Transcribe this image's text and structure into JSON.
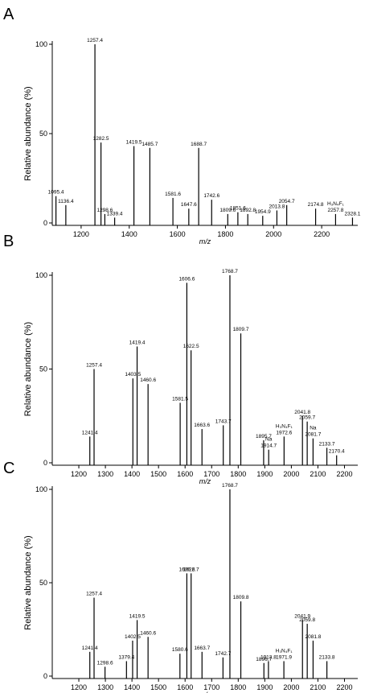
{
  "chart_data": [
    {
      "type": "spectrum",
      "panel_label": "A",
      "ylabel": "Relative abundance (%)",
      "xlabel": "m/z",
      "color": "#000000",
      "x": [
        1095.4,
        1136.4,
        1257.4,
        1282.5,
        1298.6,
        1339.4,
        1419.5,
        1485.7,
        1581.6,
        1647.6,
        1688.7,
        1742.6,
        1809.6,
        1851.6,
        1892.8,
        1954.9,
        2013.8,
        2054.7,
        2174.8,
        2257.8,
        2328.1
      ],
      "values": [
        15,
        10,
        100,
        45,
        5,
        3,
        43,
        42,
        14,
        8,
        42,
        13,
        5,
        6,
        5,
        4,
        7,
        10,
        8,
        5,
        3
      ],
      "xlim": [
        1080,
        2350
      ],
      "xticks": [
        1200,
        1400,
        1600,
        1800,
        2000,
        2200
      ],
      "ylim": [
        0,
        100
      ],
      "yticks": [
        0,
        50,
        100
      ],
      "annotations": [
        "H₃N₄F₁"
      ]
    },
    {
      "type": "spectrum",
      "panel_label": "B",
      "ylabel": "Relative abundance (%)",
      "xlabel": "m/z",
      "color": "#000000",
      "x": [
        1241.4,
        1257.4,
        1403.5,
        1419.4,
        1460.6,
        1581.5,
        1606.6,
        1622.5,
        1663.6,
        1743.7,
        1768.7,
        1809.7,
        1895.7,
        1914.7,
        1972.6,
        2041.8,
        2059.7,
        2081.7,
        2133.7,
        2170.4
      ],
      "values": [
        14,
        50,
        45,
        62,
        42,
        32,
        96,
        60,
        18,
        20,
        100,
        69,
        12,
        7,
        14,
        25,
        22,
        13,
        8,
        4
      ],
      "xlim": [
        1100,
        2250
      ],
      "xticks": [
        1200,
        1300,
        1400,
        1500,
        1600,
        1700,
        1800,
        1900,
        2000,
        2100,
        2200
      ],
      "ylim": [
        0,
        100
      ],
      "yticks": [
        0,
        50,
        100
      ],
      "annotations": [
        "H₃N₄F₁",
        "Na",
        "Na"
      ]
    },
    {
      "type": "spectrum",
      "panel_label": "C",
      "ylabel": "Relative abundance (%)",
      "xlabel": "m/z",
      "color": "#000000",
      "x": [
        1241.4,
        1257.4,
        1298.6,
        1379.4,
        1402.5,
        1419.5,
        1460.6,
        1580.6,
        1606.6,
        1622.7,
        1663.7,
        1742.7,
        1768.7,
        1809.8,
        1896.7,
        1913.8,
        1971.9,
        2041.9,
        2059.8,
        2081.8,
        2133.8
      ],
      "values": [
        13,
        42,
        5,
        8,
        19,
        30,
        21,
        12,
        55,
        55,
        13,
        10,
        100,
        40,
        7,
        8,
        8,
        30,
        28,
        19,
        8
      ],
      "xlim": [
        1100,
        2250
      ],
      "xticks": [
        1200,
        1300,
        1400,
        1500,
        1600,
        1700,
        1800,
        1900,
        2000,
        2100,
        2200
      ],
      "ylim": [
        0,
        100
      ],
      "yticks": [
        0,
        50,
        100
      ],
      "annotations": [
        "H₃N₄F₁"
      ]
    }
  ]
}
